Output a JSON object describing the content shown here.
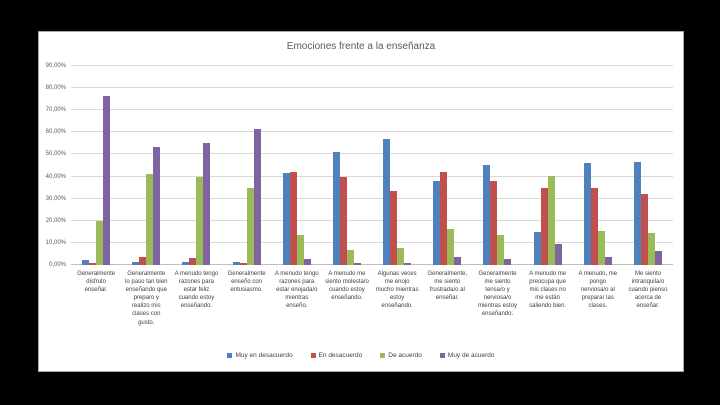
{
  "chart_data": {
    "type": "bar",
    "title": "Emociones frente a la enseñanza",
    "xlabel": "",
    "ylabel": "",
    "ylim": [
      0,
      90
    ],
    "grid": true,
    "legend_position": "bottom",
    "y_ticks": [
      "90,00%",
      "80,00%",
      "70,00%",
      "60,00%",
      "50,00%",
      "40,00%",
      "30,00%",
      "20,00%",
      "10,00%",
      "0,00%"
    ],
    "categories": [
      "Generalmente disfruto enseñar.",
      "Generalmente lo paso tan bien enseñando que preparo y realizo mis clases con gusto.",
      "A menudo tengo razones para estar feliz cuando estoy enseñando.",
      "Generalmente enseño con entusiasmo.",
      "A menudo tengo razones para estar enojada/o mientras enseño.",
      "A menudo me siento molesta/o cuando estoy enseñando.",
      "Algunas veces me enojo mucho mientras estoy enseñando.",
      "Generalmente, me siento frustrada/o al enseñar.",
      "Generalmente me siento tensa/o y nerviosa/o mientras estoy enseñando.",
      "A menudo me preocupa que mis clases no me están saliendo bien.",
      "A menudo, me pongo nerviosa/o al preparar las clases.",
      "Me siento intranquila/o cuando pienso acerca de enseñar."
    ],
    "series": [
      {
        "key": "muy-en-desacuerdo",
        "name": "Muy en desacuerdo",
        "color": "#4F81BD",
        "values": [
          2.3,
          1.4,
          1.4,
          1.2,
          41.4,
          51.0,
          56.9,
          38.0,
          45.2,
          15.0,
          46.2,
          46.5
        ]
      },
      {
        "key": "en-desacuerdo",
        "name": "En desacuerdo",
        "color": "#C0504D",
        "values": [
          0.9,
          3.4,
          3.0,
          1.0,
          42.0,
          40.0,
          33.5,
          42.0,
          38.1,
          35.0,
          35.0,
          32.2
        ]
      },
      {
        "key": "de-acuerdo",
        "name": "De acuerdo",
        "color": "#9BBB59",
        "values": [
          20.0,
          41.0,
          39.7,
          35.0,
          13.8,
          7.0,
          7.8,
          16.1,
          13.6,
          40.2,
          15.2,
          14.5
        ]
      },
      {
        "key": "muy-de-acuerdo",
        "name": "Muy de acuerdo",
        "color": "#8064A2",
        "values": [
          76.3,
          53.4,
          55.2,
          61.7,
          2.8,
          1.1,
          1.1,
          3.7,
          2.8,
          9.7,
          3.4,
          6.4
        ]
      }
    ]
  }
}
